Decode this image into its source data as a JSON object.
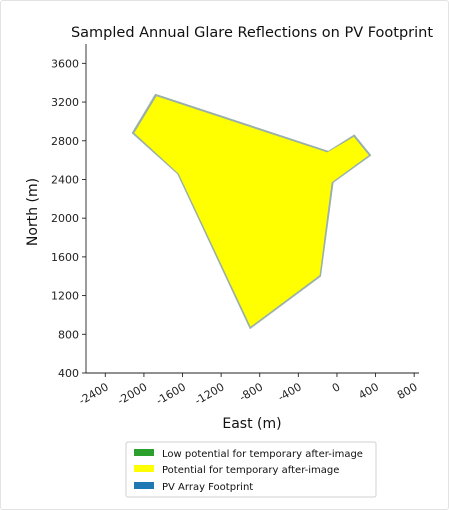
{
  "chart_data": {
    "type": "area",
    "title": "Sampled Annual Glare Reflections on PV Footprint",
    "xlabel": "East (m)",
    "ylabel": "North (m)",
    "xlim": [
      -2600,
      850
    ],
    "ylim": [
      400,
      3800
    ],
    "x_ticks": [
      -2400,
      -2000,
      -1600,
      -1200,
      -800,
      -400,
      0,
      400,
      800
    ],
    "y_ticks": [
      400,
      800,
      1200,
      1600,
      2000,
      2400,
      2800,
      3200,
      3600
    ],
    "grid": false,
    "legend_position": "bottom-center",
    "legend": [
      {
        "label": "Low potential for temporary after-image",
        "color": "#2ca02c"
      },
      {
        "label": "Potential for temporary after-image",
        "color": "#ffff00"
      },
      {
        "label": "PV Array Footprint",
        "color": "#1f77b4"
      }
    ],
    "series": [
      {
        "name": "PV Array Footprint",
        "color": "#9ab0a8",
        "x": [
          -1880,
          -2120,
          -1650,
          -900,
          -170,
          -40,
          350,
          180,
          -90,
          -1880
        ],
        "y": [
          3280,
          2880,
          2460,
          860,
          1400,
          2370,
          2650,
          2860,
          2690,
          3280
        ]
      },
      {
        "name": "Potential for temporary after-image",
        "color": "#ffff00",
        "x": [
          -1870,
          -2100,
          -1640,
          -895,
          -180,
          -55,
          330,
          175,
          -100,
          -1870
        ],
        "y": [
          3260,
          2880,
          2460,
          880,
          1410,
          2370,
          2650,
          2840,
          2680,
          3260
        ]
      }
    ]
  }
}
